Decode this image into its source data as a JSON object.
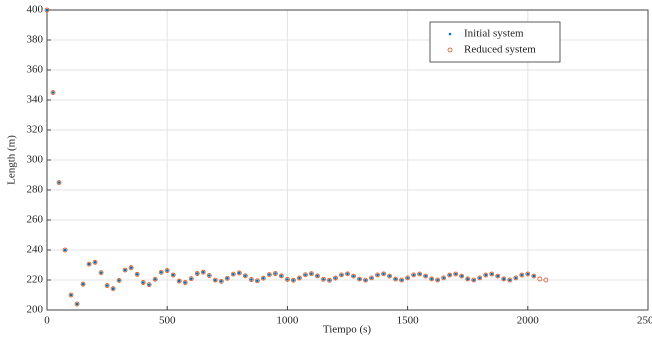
{
  "chart_data": {
    "type": "scatter",
    "xlabel": "Tiempo (s)",
    "ylabel": "Length (m)",
    "xlim": [
      0,
      2500
    ],
    "xticks": [
      0,
      500,
      1000,
      1500,
      2000,
      2500
    ],
    "ylim": [
      200,
      400
    ],
    "yticks": [
      200,
      220,
      240,
      260,
      280,
      300,
      320,
      340,
      360,
      380,
      400
    ],
    "grid": true,
    "legend": "upper right",
    "series": [
      {
        "name": "Initial system",
        "color": "#0072bd",
        "marker": "dot",
        "x": [
          0,
          25,
          50,
          75,
          100,
          125,
          150,
          175,
          200,
          225,
          250,
          275,
          300,
          325,
          350,
          375,
          400,
          425,
          450,
          475,
          500,
          525,
          550,
          575,
          600,
          625,
          650,
          675,
          700,
          725,
          750,
          775,
          800,
          825,
          850,
          875,
          900,
          925,
          950,
          975,
          1000,
          1025,
          1050,
          1075,
          1100,
          1125,
          1150,
          1175,
          1200,
          1225,
          1250,
          1275,
          1300,
          1325,
          1350,
          1375,
          1400,
          1425,
          1450,
          1475,
          1500,
          1525,
          1550,
          1575,
          1600,
          1625,
          1650,
          1675,
          1700,
          1725,
          1750,
          1775,
          1800,
          1825,
          1850,
          1875,
          1900,
          1925,
          1950,
          1975,
          2000,
          2025
        ],
        "values": [
          400,
          345,
          285,
          240,
          210,
          204.0,
          217.2,
          230.6,
          231.8,
          224.9,
          216.3,
          214.2,
          219.7,
          226.6,
          228.2,
          223.8,
          218.3,
          216.9,
          220.5,
          225.1,
          226.3,
          223.3,
          219.3,
          218.3,
          220.9,
          224.3,
          225.2,
          223.0,
          219.9,
          219.1,
          221.1,
          223.9,
          224.7,
          222.8,
          220.3,
          219.5,
          221.2,
          223.6,
          224.3,
          222.7,
          220.4,
          219.8,
          221.3,
          223.5,
          224.2,
          222.7,
          220.5,
          219.8,
          221.3,
          223.4,
          224.1,
          222.6,
          220.6,
          219.9,
          221.4,
          223.4,
          224.1,
          222.6,
          220.6,
          220.0,
          221.4,
          223.4,
          224.0,
          222.6,
          220.7,
          220.0,
          221.4,
          223.3,
          224.0,
          222.6,
          220.7,
          220.0,
          221.4,
          223.3,
          224.0,
          222.6,
          220.7,
          220.0,
          221.4,
          223.3,
          224.0,
          222.6
        ]
      },
      {
        "name": "Reduced system",
        "color": "#d95319",
        "marker": "circle",
        "x": [
          0,
          25,
          50,
          75,
          100,
          125,
          150,
          175,
          200,
          225,
          250,
          275,
          300,
          325,
          350,
          375,
          400,
          425,
          450,
          475,
          500,
          525,
          550,
          575,
          600,
          625,
          650,
          675,
          700,
          725,
          750,
          775,
          800,
          825,
          850,
          875,
          900,
          925,
          950,
          975,
          1000,
          1025,
          1050,
          1075,
          1100,
          1125,
          1150,
          1175,
          1200,
          1225,
          1250,
          1275,
          1300,
          1325,
          1350,
          1375,
          1400,
          1425,
          1450,
          1475,
          1500,
          1525,
          1550,
          1575,
          1600,
          1625,
          1650,
          1675,
          1700,
          1725,
          1750,
          1775,
          1800,
          1825,
          1850,
          1875,
          1900,
          1925,
          1950,
          1975,
          2000,
          2025,
          2050,
          2075
        ],
        "values": [
          400,
          345,
          285,
          240,
          210,
          204.0,
          217.2,
          230.6,
          231.8,
          224.9,
          216.3,
          214.2,
          219.7,
          226.6,
          228.2,
          223.8,
          218.3,
          216.9,
          220.5,
          225.1,
          226.3,
          223.3,
          219.3,
          218.3,
          220.9,
          224.3,
          225.2,
          223.0,
          219.9,
          219.1,
          221.1,
          223.9,
          224.7,
          222.8,
          220.3,
          219.5,
          221.2,
          223.6,
          224.3,
          222.7,
          220.4,
          219.8,
          221.3,
          223.5,
          224.2,
          222.7,
          220.5,
          219.8,
          221.3,
          223.4,
          224.1,
          222.6,
          220.6,
          219.9,
          221.4,
          223.4,
          224.1,
          222.6,
          220.6,
          220.0,
          221.4,
          223.4,
          224.0,
          222.6,
          220.7,
          220.0,
          221.4,
          223.3,
          224.0,
          222.6,
          220.7,
          220.0,
          221.4,
          223.3,
          224.0,
          222.6,
          220.7,
          220.0,
          221.4,
          223.3,
          224.0,
          222.6,
          220.7,
          220.0
        ]
      }
    ]
  }
}
